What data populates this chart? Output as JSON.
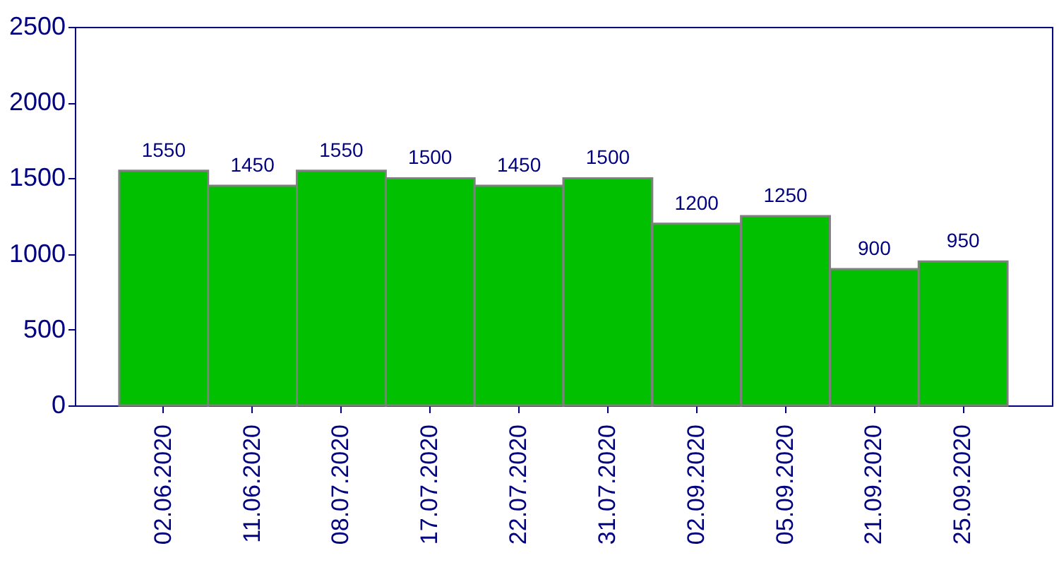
{
  "chart_data": {
    "type": "bar",
    "categories": [
      "02.06.2020",
      "11.06.2020",
      "08.07.2020",
      "17.07.2020",
      "22.07.2020",
      "31.07.2020",
      "02.09.2020",
      "05.09.2020",
      "21.09.2020",
      "25.09.2020"
    ],
    "values": [
      1550,
      1450,
      1550,
      1500,
      1450,
      1500,
      1200,
      1250,
      900,
      950
    ],
    "color": "#00c000",
    "ylim": [
      0,
      2500
    ],
    "yticks": [
      0,
      500,
      1000,
      1500,
      2000,
      2500
    ],
    "data_labels": true,
    "grid": false
  }
}
